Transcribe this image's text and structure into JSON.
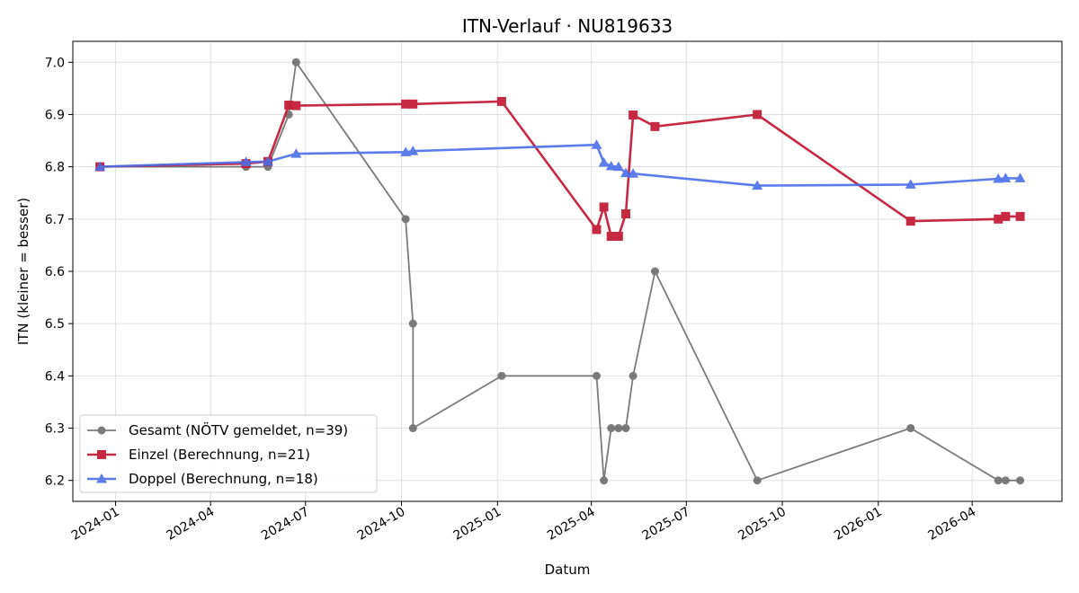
{
  "chart_data": {
    "type": "line",
    "title": "ITN-Verlauf · NU819633",
    "xlabel": "Datum",
    "ylabel": "ITN  (kleiner = besser)",
    "ylim": [
      6.16,
      7.04
    ],
    "xlim": [
      "2023-11-21",
      "2026-06-26"
    ],
    "grid": true,
    "legend_position": "lower-left",
    "y_ticks": [
      "6.2",
      "6.3",
      "6.4",
      "6.5",
      "6.6",
      "6.7",
      "6.8",
      "6.9",
      "7.0"
    ],
    "x_ticks": [
      "2024-01",
      "2024-04",
      "2024-07",
      "2024-10",
      "2025-01",
      "2025-04",
      "2025-07",
      "2025-10",
      "2026-01",
      "2026-04"
    ],
    "series": [
      {
        "name": "Gesamt (NÖTV gemeldet, n=39)",
        "color": "#444444",
        "marker": "circle",
        "points": [
          [
            "2023-12-17",
            6.8
          ],
          [
            "2024-05-05",
            6.8
          ],
          [
            "2024-05-26",
            6.8
          ],
          [
            "2024-06-15",
            6.9
          ],
          [
            "2024-06-22",
            7.0
          ],
          [
            "2024-10-05",
            6.7
          ],
          [
            "2024-10-12",
            6.5
          ],
          [
            "2024-10-12",
            6.3
          ],
          [
            "2025-01-05",
            6.4
          ],
          [
            "2025-04-06",
            6.4
          ],
          [
            "2025-04-13",
            6.2
          ],
          [
            "2025-04-20",
            6.3
          ],
          [
            "2025-04-27",
            6.3
          ],
          [
            "2025-05-04",
            6.3
          ],
          [
            "2025-05-11",
            6.4
          ],
          [
            "2025-06-01",
            6.6
          ],
          [
            "2025-09-07",
            6.2
          ],
          [
            "2026-02-01",
            6.3
          ],
          [
            "2026-04-26",
            6.2
          ],
          [
            "2026-05-03",
            6.2
          ],
          [
            "2026-05-17",
            6.2
          ]
        ]
      },
      {
        "name": "Einzel (Berechnung, n=21)",
        "color": "#c41e3a",
        "marker": "square",
        "points": [
          [
            "2023-12-17",
            6.8
          ],
          [
            "2024-05-05",
            6.806
          ],
          [
            "2024-05-26",
            6.81
          ],
          [
            "2024-06-15",
            6.918
          ],
          [
            "2024-06-22",
            6.917
          ],
          [
            "2024-10-05",
            6.92
          ],
          [
            "2024-10-12",
            6.92
          ],
          [
            "2025-01-05",
            6.925
          ],
          [
            "2025-04-06",
            6.68
          ],
          [
            "2025-04-13",
            6.723
          ],
          [
            "2025-04-20",
            6.667
          ],
          [
            "2025-04-27",
            6.667
          ],
          [
            "2025-05-04",
            6.71
          ],
          [
            "2025-05-11",
            6.899
          ],
          [
            "2025-06-01",
            6.877
          ],
          [
            "2025-09-07",
            6.9
          ],
          [
            "2026-02-01",
            6.696
          ],
          [
            "2026-04-26",
            6.7
          ],
          [
            "2026-05-03",
            6.705
          ],
          [
            "2026-05-17",
            6.705
          ]
        ]
      },
      {
        "name": "Doppel (Berechnung, n=18)",
        "color": "#4a6ee8",
        "marker": "triangle",
        "points": [
          [
            "2023-12-17",
            6.8
          ],
          [
            "2024-05-05",
            6.809
          ],
          [
            "2024-05-26",
            6.81
          ],
          [
            "2024-06-22",
            6.825
          ],
          [
            "2024-10-05",
            6.828
          ],
          [
            "2024-10-12",
            6.83
          ],
          [
            "2025-04-06",
            6.842
          ],
          [
            "2025-04-13",
            6.808
          ],
          [
            "2025-04-20",
            6.801
          ],
          [
            "2025-04-27",
            6.8
          ],
          [
            "2025-05-04",
            6.788
          ],
          [
            "2025-05-11",
            6.787
          ],
          [
            "2025-09-07",
            6.764
          ],
          [
            "2026-02-01",
            6.766
          ],
          [
            "2026-04-26",
            6.777
          ],
          [
            "2026-05-03",
            6.778
          ],
          [
            "2026-05-17",
            6.778
          ]
        ]
      }
    ]
  }
}
